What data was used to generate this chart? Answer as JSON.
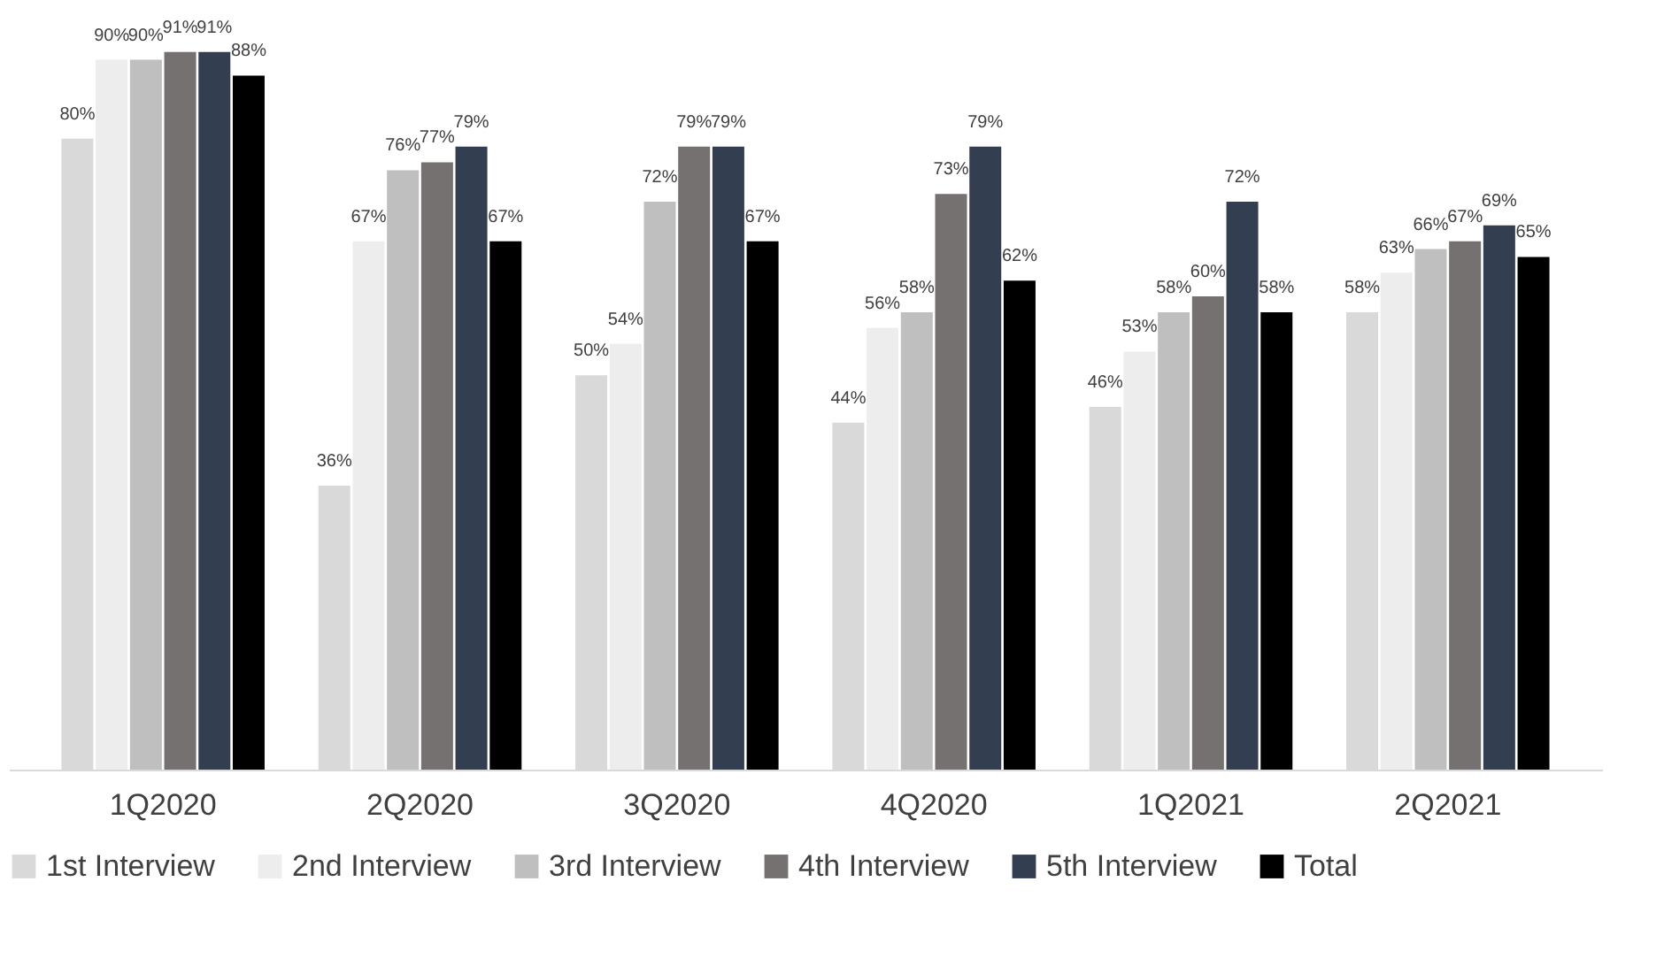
{
  "chart_data": {
    "type": "bar",
    "categories": [
      "1Q2020",
      "2Q2020",
      "3Q2020",
      "4Q2020",
      "1Q2021",
      "2Q2021"
    ],
    "legend": "bottom",
    "grid": false,
    "series": [
      {
        "name": "1st Interview",
        "color": "#d9d9d9",
        "values": [
          80,
          36,
          50,
          44,
          46,
          58
        ],
        "value_labels": [
          "80%",
          "36%",
          "50%",
          "44%",
          "46%",
          "58%"
        ]
      },
      {
        "name": "2nd Interview",
        "color": "#ededed",
        "values": [
          90,
          67,
          54,
          56,
          53,
          63
        ],
        "value_labels": [
          "90%",
          "67%",
          "54%",
          "56%",
          "53%",
          "63%"
        ]
      },
      {
        "name": "3rd Interview",
        "color": "#bfbfbf",
        "values": [
          90,
          76,
          72,
          58,
          58,
          66
        ],
        "value_labels": [
          "90%",
          "76%",
          "72%",
          "58%",
          "58%",
          "66%"
        ]
      },
      {
        "name": "4th Interview",
        "color": "#767171",
        "values": [
          91,
          77,
          79,
          73,
          60,
          67
        ],
        "value_labels": [
          "91%",
          "77%",
          "79%",
          "73%",
          "60%",
          "67%"
        ]
      },
      {
        "name": "5th Interview",
        "color": "#333f50",
        "values": [
          91,
          79,
          79,
          79,
          72,
          69
        ],
        "value_labels": [
          "91%",
          "79%",
          "79%",
          "79%",
          "72%",
          "69%"
        ]
      },
      {
        "name": "Total",
        "color": "#000000",
        "values": [
          88,
          67,
          67,
          62,
          58,
          65
        ],
        "value_labels": [
          "88%",
          "67%",
          "67%",
          "62%",
          "58%",
          "65%"
        ]
      }
    ]
  }
}
